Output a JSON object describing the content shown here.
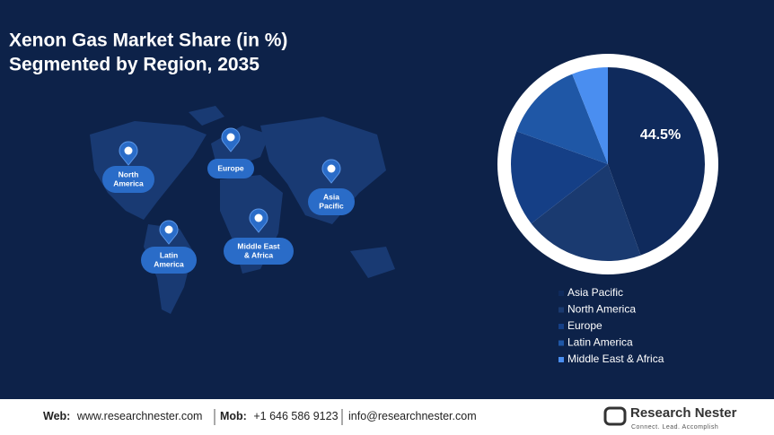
{
  "title": "Xenon Gas Market Share (in %)",
  "subtitle": "Segmented by Region, 2035",
  "map_labels": [
    [
      "North",
      "America"
    ],
    [
      "Europe"
    ],
    [
      "Asia",
      "Pacific"
    ],
    [
      "Latin",
      "America"
    ],
    [
      "Middle East",
      "& Africa"
    ]
  ],
  "chart_data": {
    "type": "pie",
    "categories": [
      "Asia Pacific",
      "North America",
      "Europe",
      "Latin America",
      "Middle East & Africa"
    ],
    "values": [
      44.5,
      20,
      16,
      13.5,
      6
    ],
    "value_labels": [
      "44.5%",
      null,
      null,
      null,
      null
    ],
    "colors": [
      "#0f2a5c",
      "#1a3a70",
      "#153f86",
      "#1f57a6",
      "#4a8ef0"
    ]
  },
  "footer": {
    "web_label": "Web:",
    "web": "www.researchnester.com",
    "mob_label": "Mob:",
    "mob": "+1 646 586 9123",
    "email": "info@researchnester.com"
  },
  "logo": {
    "name": "Research Nester",
    "tagline": "Connect. Lead. Accomplish"
  }
}
